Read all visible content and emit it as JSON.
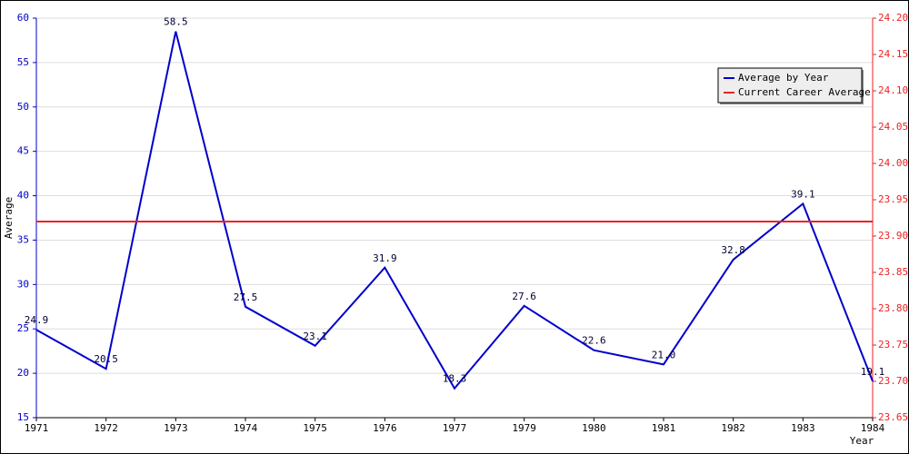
{
  "chart_data": {
    "type": "line",
    "x_label": "Year",
    "y_label": "Average",
    "categories": [
      "1971",
      "1972",
      "1973",
      "1974",
      "1975",
      "1976",
      "1977",
      "1979",
      "1980",
      "1981",
      "1982",
      "1983",
      "1984"
    ],
    "series": [
      {
        "name": "Average by Year",
        "color": "#0000cc",
        "values": [
          24.9,
          20.5,
          58.5,
          27.5,
          23.1,
          31.9,
          18.3,
          27.6,
          22.6,
          21.0,
          32.8,
          39.1,
          19.1
        ],
        "value_labels": [
          "24.9",
          "20.5",
          "58.5",
          "27.5",
          "23.1",
          "31.9",
          "18.3",
          "27.6",
          "22.6",
          "21.0",
          "32.8",
          "39.1",
          "19.1"
        ]
      },
      {
        "name": "Current Career Average",
        "color": "#ee2222",
        "axis": "y2",
        "values": [
          23.92,
          23.92,
          23.92,
          23.92,
          23.92,
          23.92,
          23.92,
          23.92,
          23.92,
          23.92,
          23.92,
          23.92,
          23.92
        ]
      }
    ],
    "ylim": [
      15,
      60
    ],
    "yticks": [
      15,
      20,
      25,
      30,
      35,
      40,
      45,
      50,
      55,
      60
    ],
    "y2lim": [
      23.65,
      24.2
    ],
    "y2ticks": [
      23.65,
      {
        "value": 23.7,
        "label": "23.70"
      },
      23.75,
      {
        "value": 23.8,
        "label": "23.80"
      },
      23.85,
      {
        "value": 23.9,
        "label": "23.90"
      },
      23.95,
      {
        "value": 24,
        "label": "24.00"
      },
      24.05,
      {
        "value": 24.1,
        "label": "24.10"
      },
      24.15,
      {
        "value": 24.2,
        "label": "24.20"
      }
    ],
    "grid": true,
    "legend_position": "top-right"
  }
}
